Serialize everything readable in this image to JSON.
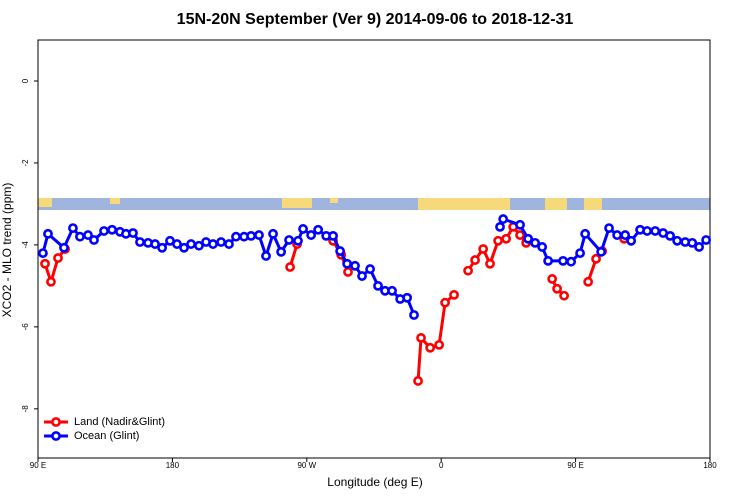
{
  "chart_data": {
    "type": "line",
    "title": "15N-20N September (Ver 9)   2014-09-06 to 2018-12-31",
    "xlabel": "Longitude (deg E)",
    "ylabel": "XCO2 - MLO trend (ppm)",
    "xlim": [
      90,
      540
    ],
    "ylim": [
      -9.2,
      1.0
    ],
    "xticks": [
      {
        "value": 90,
        "label": "90 E"
      },
      180,
      {
        "value": 270,
        "label": "90 W"
      },
      {
        "value": 360,
        "label": "0"
      },
      {
        "value": 450,
        "label": "90 E"
      },
      {
        "value": 540,
        "label": "180"
      }
    ],
    "yticks": [
      0,
      -2,
      -4,
      -6,
      -8
    ],
    "legend": "bottom-left",
    "series": [
      {
        "name": "Land (Nadir&Glint)",
        "color": "#ff0000",
        "x": [
          94.7,
          98.7,
          103.4,
          108.1,
          null,
          258.8,
          263.5,
          null,
          287.6,
          293.0,
          297.6,
          null,
          344.5,
          346.5,
          352.6,
          358.6,
          362.6,
          368.6,
          null,
          378.0,
          382.7,
          388.1,
          392.7,
          398.1,
          403.5,
          408.2,
          412.8,
          416.9,
          null,
          434.3,
          437.6,
          442.3,
          null,
          458.4,
          463.7,
          467.8,
          null,
          482.5
        ],
        "values": [
          -4.46,
          -4.9,
          -4.32,
          -4.1,
          null,
          -4.54,
          -3.98,
          null,
          -3.9,
          -4.24,
          -4.66,
          null,
          -7.32,
          -6.27,
          -6.51,
          -6.44,
          -5.41,
          -5.22,
          null,
          -4.63,
          -4.37,
          -4.1,
          -4.46,
          -3.9,
          -3.85,
          -3.56,
          -3.76,
          -3.95,
          null,
          -4.83,
          -5.07,
          -5.24,
          null,
          -4.9,
          -4.34,
          -4.15,
          null,
          -3.85
        ]
      },
      {
        "name": "Ocean (Glint)",
        "color": "#0000ff",
        "x": [
          93.3,
          96.7,
          107.4,
          113.4,
          118.1,
          123.5,
          127.5,
          134.2,
          139.6,
          144.9,
          148.9,
          153.6,
          158.3,
          163.7,
          168.4,
          173.1,
          178.4,
          183.1,
          187.8,
          192.5,
          197.8,
          202.5,
          207.2,
          212.6,
          217.9,
          222.6,
          228.0,
          232.7,
          238.0,
          242.7,
          247.4,
          252.8,
          258.1,
          264.1,
          267.5,
          272.9,
          277.6,
          283.0,
          287.6,
          292.3,
          297.0,
          302.3,
          307.0,
          312.4,
          317.7,
          322.4,
          327.1,
          332.5,
          337.2,
          341.8,
          null,
          399.4,
          401.5,
          412.8,
          418.2,
          422.9,
          427.6,
          431.6,
          441.6,
          447.0,
          453.0,
          456.4,
          467.1,
          472.4,
          477.8,
          483.2,
          487.2,
          493.2,
          497.9,
          503.3,
          508.6,
          513.3,
          518.0,
          523.4,
          528.1,
          532.7,
          537.4
        ],
        "values": [
          -4.2,
          -3.73,
          -4.07,
          -3.59,
          -3.8,
          -3.76,
          -3.88,
          -3.66,
          -3.63,
          -3.68,
          -3.73,
          -3.71,
          -3.93,
          -3.95,
          -3.98,
          -4.07,
          -3.9,
          -3.98,
          -4.07,
          -3.98,
          -4.02,
          -3.93,
          -3.98,
          -3.93,
          -3.98,
          -3.8,
          -3.8,
          -3.78,
          -3.76,
          -4.27,
          -3.73,
          -4.17,
          -3.88,
          -3.9,
          -3.61,
          -3.76,
          -3.63,
          -3.78,
          -3.78,
          -4.15,
          -4.46,
          -4.51,
          -4.76,
          -4.59,
          -5.0,
          -5.12,
          -5.12,
          -5.32,
          -5.29,
          -5.71,
          null,
          -3.56,
          -3.37,
          -3.51,
          -3.85,
          -3.95,
          -4.05,
          -4.39,
          -4.39,
          -4.41,
          -4.2,
          -3.73,
          -4.17,
          -3.59,
          -3.76,
          -3.76,
          -3.9,
          -3.63,
          -3.66,
          -3.66,
          -3.71,
          -3.78,
          -3.9,
          -3.93,
          -3.95,
          -4.05,
          -3.88
        ]
      }
    ]
  }
}
